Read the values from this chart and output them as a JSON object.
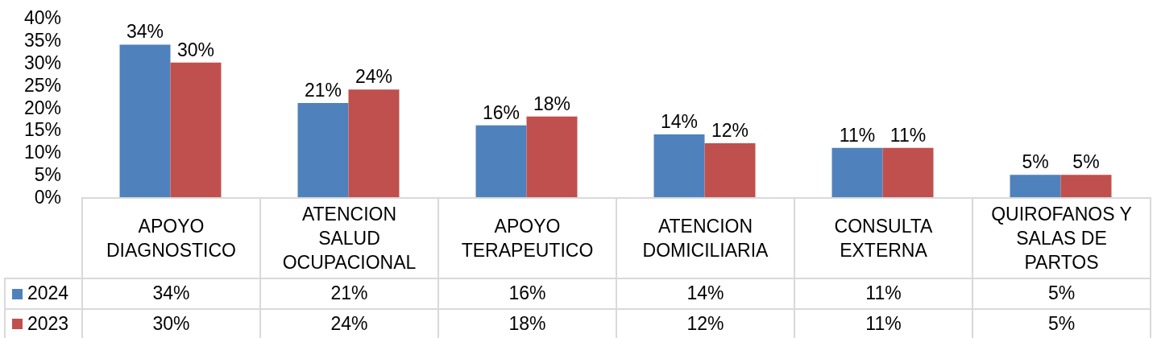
{
  "chart_data": {
    "type": "bar",
    "categories": [
      "APOYO DIAGNOSTICO",
      "ATENCION SALUD OCUPACIONAL",
      "APOYO TERAPEUTICO",
      "ATENCION DOMICILIARIA",
      "CONSULTA EXTERNA",
      "QUIROFANOS Y SALAS DE PARTOS"
    ],
    "series": [
      {
        "name": "2024",
        "color": "#4f81bd",
        "values": [
          34,
          21,
          16,
          14,
          11,
          5
        ],
        "value_labels": [
          "34%",
          "21%",
          "16%",
          "14%",
          "11%",
          "5%"
        ]
      },
      {
        "name": "2023",
        "color": "#c0504d",
        "values": [
          30,
          24,
          18,
          12,
          11,
          5
        ],
        "value_labels": [
          "30%",
          "24%",
          "18%",
          "12%",
          "11%",
          "5%"
        ]
      }
    ],
    "ylim": [
      0,
      40
    ],
    "yticks": [
      {
        "value": 0,
        "label": "0%"
      },
      {
        "value": 5,
        "label": "5%"
      },
      {
        "value": 10,
        "label": "10%"
      },
      {
        "value": 15,
        "label": "15%"
      },
      {
        "value": 20,
        "label": "20%"
      },
      {
        "value": 25,
        "label": "25%"
      },
      {
        "value": 30,
        "label": "30%"
      },
      {
        "value": 35,
        "label": "35%"
      },
      {
        "value": 40,
        "label": "40%"
      }
    ],
    "legend": "bottom left"
  }
}
